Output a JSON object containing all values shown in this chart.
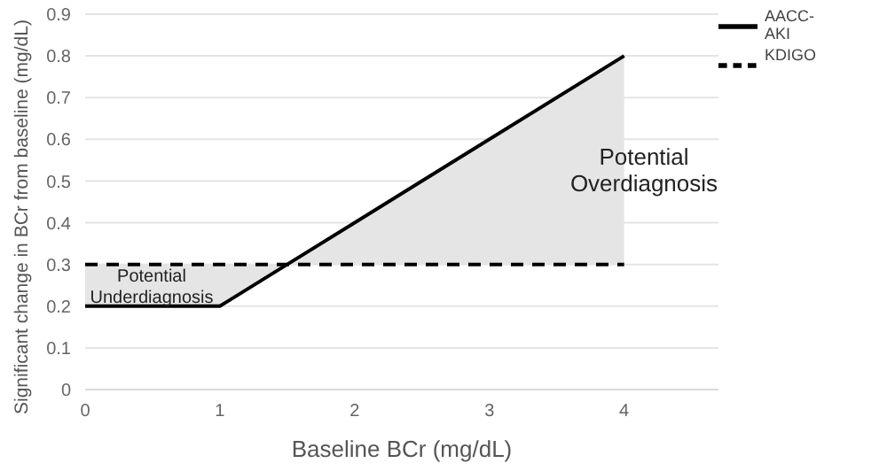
{
  "chart_data": {
    "type": "line",
    "xlabel": "Baseline BCr (mg/dL)",
    "ylabel": "Significant change in BCr from baseline (mg/dL)",
    "x": [
      0,
      1,
      1.5,
      4
    ],
    "series": [
      {
        "name": "AACC-AKI",
        "color": "#000000",
        "values": [
          0.2,
          0.2,
          0.3,
          0.8
        ],
        "line_style": "solid"
      },
      {
        "name": "KDIGO",
        "color": "#000000",
        "values": [
          0.3,
          0.3,
          0.3,
          0.3
        ],
        "line_style": "dashed",
        "lower": [
          0.2,
          0.2,
          0.3,
          0.3
        ],
        "upper": [
          0.3,
          0.3,
          0.3,
          0.8
        ]
      }
    ],
    "xlim": [
      0,
      4.7
    ],
    "xticks": [
      0,
      1,
      2,
      3,
      4
    ],
    "ylim": [
      0,
      0.9
    ],
    "yticks": [
      0,
      0.1,
      0.2,
      0.3,
      0.4,
      0.5,
      0.6,
      0.7,
      0.8,
      0.9
    ],
    "grid": "y",
    "legend": "top right",
    "marker": "none",
    "annotations": [
      "Potential Overdiagnosis",
      "Potential Underdiagnosis"
    ]
  }
}
